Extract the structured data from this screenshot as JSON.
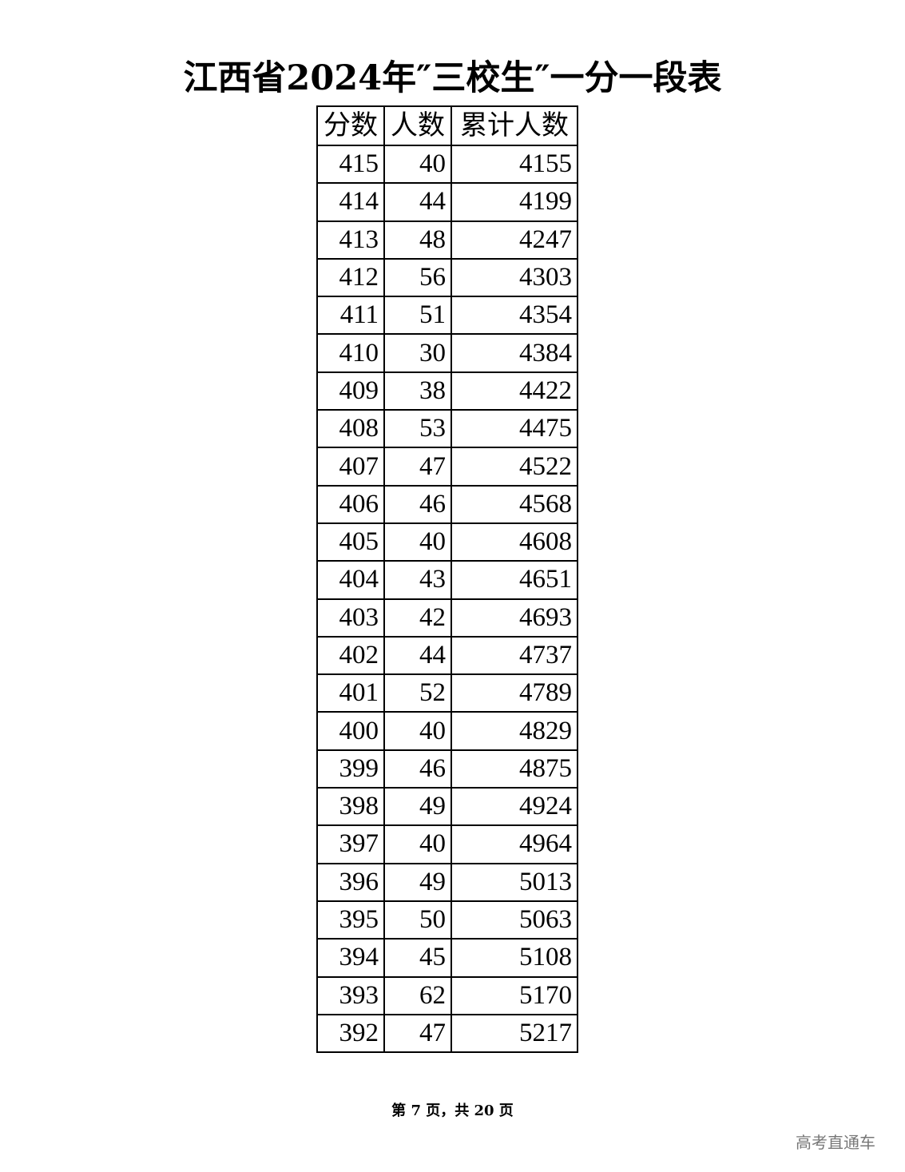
{
  "title": "江西省2024年″三校生″一分一段表",
  "table": {
    "headers": [
      "分数",
      "人数",
      "累计人数"
    ],
    "rows": [
      [
        "415",
        "40",
        "4155"
      ],
      [
        "414",
        "44",
        "4199"
      ],
      [
        "413",
        "48",
        "4247"
      ],
      [
        "412",
        "56",
        "4303"
      ],
      [
        "411",
        "51",
        "4354"
      ],
      [
        "410",
        "30",
        "4384"
      ],
      [
        "409",
        "38",
        "4422"
      ],
      [
        "408",
        "53",
        "4475"
      ],
      [
        "407",
        "47",
        "4522"
      ],
      [
        "406",
        "46",
        "4568"
      ],
      [
        "405",
        "40",
        "4608"
      ],
      [
        "404",
        "43",
        "4651"
      ],
      [
        "403",
        "42",
        "4693"
      ],
      [
        "402",
        "44",
        "4737"
      ],
      [
        "401",
        "52",
        "4789"
      ],
      [
        "400",
        "40",
        "4829"
      ],
      [
        "399",
        "46",
        "4875"
      ],
      [
        "398",
        "49",
        "4924"
      ],
      [
        "397",
        "40",
        "4964"
      ],
      [
        "396",
        "49",
        "5013"
      ],
      [
        "395",
        "50",
        "5063"
      ],
      [
        "394",
        "45",
        "5108"
      ],
      [
        "393",
        "62",
        "5170"
      ],
      [
        "392",
        "47",
        "5217"
      ]
    ]
  },
  "footer": "第 7 页，共 20 页",
  "watermark": "高考直通车"
}
